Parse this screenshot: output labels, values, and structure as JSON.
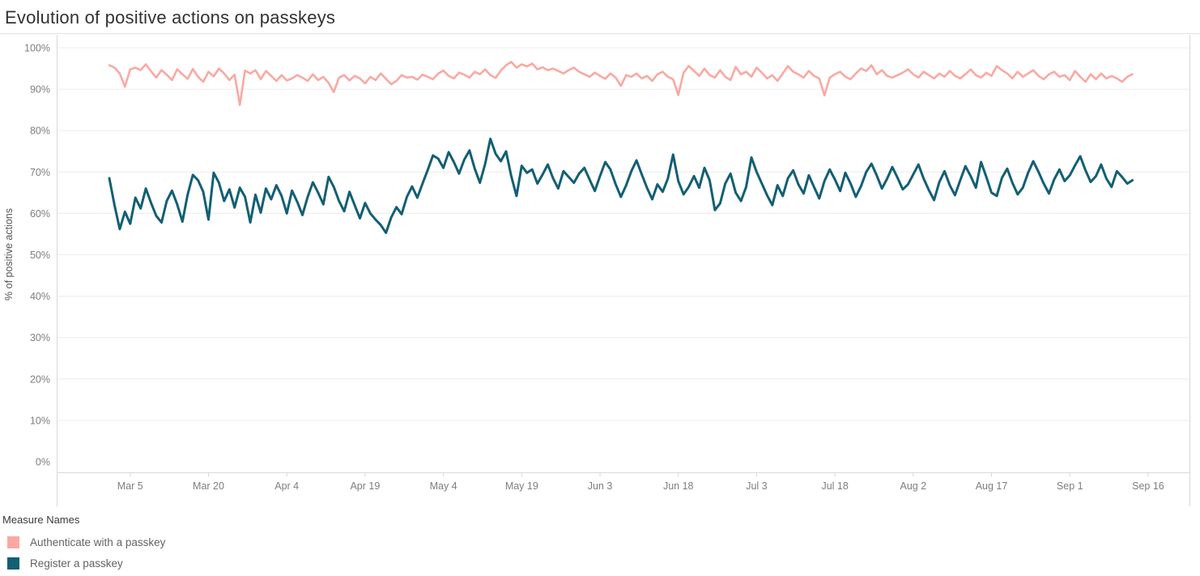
{
  "title": "Evolution of positive actions on passkeys",
  "legend": {
    "title": "Measure Names",
    "items": [
      {
        "label": "Authenticate with a passkey",
        "color": "#F9A9A2"
      },
      {
        "label": "Register a passkey",
        "color": "#135F74"
      }
    ]
  },
  "chart_data": {
    "type": "line",
    "title": "Evolution of positive actions on passkeys",
    "xlabel": "",
    "ylabel": "% of positive actions",
    "ylim": [
      0,
      100
    ],
    "ytick_step": 10,
    "y_ticks": [
      "0%",
      "10%",
      "20%",
      "30%",
      "40%",
      "50%",
      "60%",
      "70%",
      "80%",
      "90%",
      "100%"
    ],
    "grid": "horizontal",
    "legend_position": "bottom-left",
    "points_cadence": "daily, first point 4 days before Mar 5 tick",
    "x_ticks": [
      {
        "label": "Mar 5",
        "day": 4
      },
      {
        "label": "Mar 20",
        "day": 19
      },
      {
        "label": "Apr 4",
        "day": 34
      },
      {
        "label": "Apr 19",
        "day": 49
      },
      {
        "label": "May 4",
        "day": 64
      },
      {
        "label": "May 19",
        "day": 79
      },
      {
        "label": "Jun 3",
        "day": 94
      },
      {
        "label": "Jun 18",
        "day": 109
      },
      {
        "label": "Jul 3",
        "day": 124
      },
      {
        "label": "Jul 18",
        "day": 139
      },
      {
        "label": "Aug 2",
        "day": 154
      },
      {
        "label": "Aug 17",
        "day": 169
      },
      {
        "label": "Sep 1",
        "day": 184
      },
      {
        "label": "Sep 16",
        "day": 199
      }
    ],
    "series": [
      {
        "name": "Authenticate with a passkey",
        "color": "#F9A9A2",
        "values": [
          95.8,
          95.2,
          93.8,
          90.6,
          94.8,
          95.2,
          94.6,
          96.0,
          94.3,
          92.8,
          94.6,
          93.5,
          92.2,
          94.8,
          93.6,
          92.5,
          94.9,
          93.0,
          91.8,
          94.2,
          93.1,
          95.0,
          93.8,
          92.2,
          93.5,
          86.2,
          94.5,
          93.8,
          94.6,
          92.4,
          94.4,
          93.2,
          92.0,
          93.4,
          92.1,
          92.6,
          93.4,
          92.8,
          92.0,
          93.6,
          92.2,
          93.0,
          91.5,
          89.3,
          92.8,
          93.4,
          92.1,
          93.2,
          92.6,
          91.4,
          93.0,
          92.2,
          93.8,
          92.5,
          91.2,
          92.0,
          93.4,
          92.8,
          93.0,
          92.3,
          93.5,
          93.0,
          92.4,
          93.8,
          94.5,
          93.2,
          92.6,
          94.0,
          93.5,
          92.8,
          94.2,
          93.6,
          94.8,
          93.4,
          92.7,
          94.5,
          95.8,
          96.6,
          95.2,
          96.0,
          95.5,
          96.2,
          94.8,
          95.3,
          94.6,
          95.0,
          94.4,
          93.8,
          94.6,
          95.2,
          94.2,
          93.6,
          93.0,
          94.0,
          93.2,
          92.5,
          93.8,
          92.8,
          90.8,
          93.4,
          93.0,
          93.8,
          92.6,
          93.2,
          92.0,
          93.6,
          94.2,
          93.0,
          92.4,
          88.6,
          94.0,
          95.6,
          94.4,
          93.2,
          95.0,
          93.4,
          92.8,
          94.6,
          93.0,
          92.2,
          95.4,
          93.6,
          94.2,
          93.0,
          95.2,
          94.0,
          92.6,
          93.4,
          92.0,
          93.8,
          95.6,
          94.2,
          93.6,
          92.8,
          94.4,
          93.2,
          92.6,
          88.5,
          92.8,
          93.6,
          94.2,
          93.0,
          92.4,
          93.8,
          95.0,
          94.4,
          95.8,
          93.6,
          94.6,
          93.2,
          92.8,
          93.4,
          94.0,
          94.8,
          93.6,
          92.8,
          94.2,
          93.4,
          92.6,
          93.8,
          93.0,
          94.4,
          93.2,
          92.6,
          93.6,
          94.8,
          93.4,
          92.8,
          94.0,
          93.2,
          95.6,
          94.6,
          93.8,
          92.6,
          94.2,
          93.0,
          93.8,
          94.6,
          93.2,
          92.4,
          93.6,
          94.2,
          93.0,
          93.4,
          92.2,
          94.4,
          93.0,
          91.8,
          93.6,
          92.4,
          93.8,
          92.6,
          93.2,
          92.6,
          91.8,
          93.0,
          93.6
        ]
      },
      {
        "name": "Register a passkey",
        "color": "#135F74",
        "values": [
          68.5,
          62.0,
          56.2,
          60.4,
          57.5,
          63.8,
          61.2,
          66.0,
          62.5,
          59.4,
          57.8,
          63.0,
          65.5,
          62.2,
          58.0,
          64.5,
          69.3,
          68.0,
          65.2,
          58.5,
          69.8,
          67.4,
          63.0,
          65.8,
          61.4,
          66.2,
          64.0,
          57.8,
          64.5,
          60.2,
          66.0,
          63.4,
          66.8,
          64.2,
          60.0,
          65.5,
          62.8,
          59.6,
          64.0,
          67.5,
          65.0,
          62.2,
          68.8,
          66.4,
          63.0,
          60.5,
          65.2,
          62.0,
          58.8,
          62.5,
          60.0,
          58.5,
          57.2,
          55.3,
          59.0,
          61.5,
          59.8,
          64.0,
          66.5,
          63.8,
          67.2,
          70.5,
          74.0,
          73.2,
          71.0,
          74.8,
          72.4,
          69.6,
          73.0,
          75.2,
          70.8,
          67.4,
          72.0,
          78.0,
          74.4,
          72.6,
          75.0,
          69.0,
          64.2,
          71.5,
          69.8,
          70.6,
          67.2,
          69.4,
          71.8,
          68.5,
          66.0,
          70.2,
          68.8,
          67.4,
          69.6,
          71.0,
          68.2,
          65.4,
          69.0,
          72.4,
          70.6,
          67.0,
          64.0,
          66.8,
          70.2,
          72.8,
          69.4,
          66.2,
          63.4,
          67.0,
          65.2,
          68.4,
          74.2,
          67.8,
          64.6,
          66.4,
          69.0,
          66.2,
          71.0,
          68.0,
          60.8,
          62.4,
          67.2,
          69.6,
          65.0,
          63.0,
          66.4,
          73.5,
          70.0,
          67.2,
          64.4,
          62.0,
          66.8,
          64.2,
          68.5,
          70.4,
          67.0,
          64.8,
          69.2,
          66.4,
          63.6,
          67.8,
          70.6,
          68.2,
          65.4,
          69.8,
          67.2,
          64.0,
          66.6,
          70.0,
          72.0,
          69.2,
          66.0,
          68.4,
          71.2,
          68.6,
          65.8,
          67.0,
          69.4,
          71.8,
          68.4,
          65.6,
          63.2,
          67.6,
          70.2,
          66.8,
          64.4,
          68.0,
          71.4,
          69.0,
          66.2,
          72.4,
          68.8,
          65.0,
          64.2,
          68.6,
          70.8,
          67.4,
          64.6,
          66.2,
          69.8,
          72.6,
          70.0,
          67.2,
          64.8,
          68.2,
          70.6,
          67.8,
          69.2,
          71.6,
          73.8,
          70.4,
          67.6,
          69.0,
          71.8,
          68.4,
          66.4,
          70.2,
          68.8,
          67.2,
          68.0
        ]
      }
    ]
  }
}
